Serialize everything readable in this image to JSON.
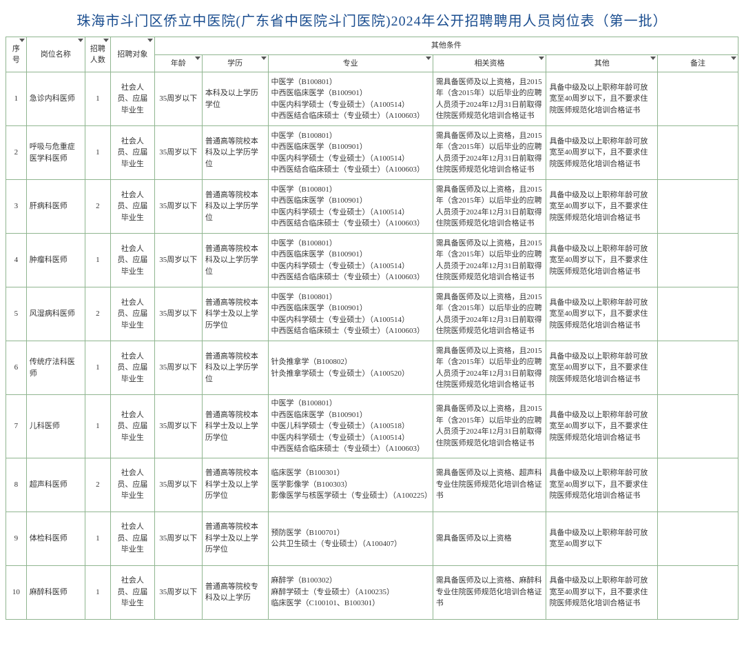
{
  "title": "珠海市斗门区侨立中医院(广东省中医院斗门医院)2024年公开招聘聘用人员岗位表（第一批）",
  "headers": {
    "idx": "序号",
    "pos": "岗位名称",
    "count": "招聘人数",
    "target": "招聘对象",
    "other_group": "其他条件",
    "age": "年龄",
    "edu": "学历",
    "major": "专业",
    "qual": "相关资格",
    "other": "其他",
    "remark": "备注"
  },
  "rows": [
    {
      "idx": "1",
      "pos": "急诊内科医师",
      "count": "1",
      "target": "社会人员、应届毕业生",
      "age": "35周岁以下",
      "edu": "本科及以上学历学位",
      "major": "中医学（B100801）\n中西医临床医学（B100901）\n中医内科学硕士（专业硕士）（A100514）\n中西医结合临床硕士（专业硕士）（A100603）",
      "qual": "需具备医师及以上资格，且2015年（含2015年）以后毕业的应聘人员须于2024年12月31日前取得住院医师规范化培训合格证书",
      "other": "具备中级及以上职称年龄可放宽至40周岁以下，且不要求住院医师规范化培训合格证书",
      "remark": ""
    },
    {
      "idx": "2",
      "pos": "呼吸与危重症医学科医师",
      "count": "1",
      "target": "社会人员、应届毕业生",
      "age": "35周岁以下",
      "edu": "普通高等院校本科及以上学历学位",
      "major": "中医学（B100801）\n中西医临床医学（B100901）\n中医内科学硕士（专业硕士）（A100514）\n中西医结合临床硕士（专业硕士）（A100603）",
      "qual": "需具备医师及以上资格，且2015年（含2015年）以后毕业的应聘人员须于2024年12月31日前取得住院医师规范化培训合格证书",
      "other": "具备中级及以上职称年龄可放宽至40周岁以下，且不要求住院医师规范化培训合格证书",
      "remark": ""
    },
    {
      "idx": "3",
      "pos": "肝病科医师",
      "count": "2",
      "target": "社会人员、应届毕业生",
      "age": "35周岁以下",
      "edu": "普通高等院校本科及以上学历学位",
      "major": "中医学（B100801）\n中西医临床医学（B100901）\n中医内科学硕士（专业硕士）（A100514）\n中西医结合临床硕士（专业硕士）（A100603）",
      "qual": "需具备医师及以上资格，且2015年（含2015年）以后毕业的应聘人员须于2024年12月31日前取得住院医师规范化培训合格证书",
      "other": "具备中级及以上职称年龄可放宽至40周岁以下，且不要求住院医师规范化培训合格证书",
      "remark": ""
    },
    {
      "idx": "4",
      "pos": "肿瘤科医师",
      "count": "1",
      "target": "社会人员、应届毕业生",
      "age": "35周岁以下",
      "edu": "普通高等院校本科及以上学历学位",
      "major": "中医学（B100801）\n中西医临床医学（B100901）\n中医内科学硕士（专业硕士）（A100514）\n中西医结合临床硕士（专业硕士）（A100603）",
      "qual": "需具备医师及以上资格，且2015年（含2015年）以后毕业的应聘人员须于2024年12月31日前取得住院医师规范化培训合格证书",
      "other": "具备中级及以上职称年龄可放宽至40周岁以下，且不要求住院医师规范化培训合格证书",
      "remark": ""
    },
    {
      "idx": "5",
      "pos": "风湿病科医师",
      "count": "2",
      "target": "社会人员、应届毕业生",
      "age": "35周岁以下",
      "edu": "普通高等院校本科学士及以上学历学位",
      "major": "中医学（B100801）\n中西医临床医学（B100901）\n中医内科学硕士（专业硕士）（A100514）\n中西医结合临床硕士（专业硕士）（A100603）",
      "qual": "需具备医师及以上资格，且2015年（含2015年）以后毕业的应聘人员须于2024年12月31日前取得住院医师规范化培训合格证书",
      "other": "具备中级及以上职称年龄可放宽至40周岁以下，且不要求住院医师规范化培训合格证书",
      "remark": ""
    },
    {
      "idx": "6",
      "pos": "传统疗法科医师",
      "count": "1",
      "target": "社会人员、应届毕业生",
      "age": "35周岁以下",
      "edu": "普通高等院校本科及以上学历学位",
      "major": "针灸推拿学（B100802）\n针灸推拿学硕士（专业硕士）（A100520）",
      "qual": "需具备医师及以上资格，且2015年（含2015年）以后毕业的应聘人员须于2024年12月31日前取得住院医师规范化培训合格证书",
      "other": "具备中级及以上职称年龄可放宽至40周岁以下，且不要求住院医师规范化培训合格证书",
      "remark": ""
    },
    {
      "idx": "7",
      "pos": "儿科医师",
      "count": "1",
      "target": "社会人员、应届毕业生",
      "age": "35周岁以下",
      "edu": "普通高等院校本科学士及以上学历学位",
      "major": "中医学（B100801）\n中西医临床医学（B100901）\n中医儿科学硕士（专业硕士）（A100518）\n中医内科学硕士（专业硕士）（A100514）\n中西医结合临床硕士（专业硕士）（A100603）",
      "qual": "需具备医师及以上资格，且2015年（含2015年）以后毕业的应聘人员须于2024年12月31日前取得住院医师规范化培训合格证书",
      "other": "具备中级及以上职称年龄可放宽至40周岁以下，且不要求住院医师规范化培训合格证书",
      "remark": ""
    },
    {
      "idx": "8",
      "pos": "超声科医师",
      "count": "2",
      "target": "社会人员、应届毕业生",
      "age": "35周岁以下",
      "edu": "普通高等院校本科学士及以上学历学位",
      "major": "临床医学（B100301）\n医学影像学（B100303）\n影像医学与核医学硕士（专业硕士）（A100225）",
      "qual": "需具备医师及以上资格、超声科专业住院医师规范化培训合格证书",
      "other": "具备中级及以上职称年龄可放宽至40周岁以下，且不要求住院医师规范化培训合格证书",
      "remark": ""
    },
    {
      "idx": "9",
      "pos": "体检科医师",
      "count": "1",
      "target": "社会人员、应届毕业生",
      "age": "35周岁以下",
      "edu": "普通高等院校本科学士及以上学历学位",
      "major": "预防医学（B100701）\n公共卫生硕士（专业硕士）（A100407）",
      "qual": "需具备医师及以上资格",
      "other": "具备中级及以上职称年龄可放宽至40周岁以下",
      "remark": ""
    },
    {
      "idx": "10",
      "pos": "麻醉科医师",
      "count": "1",
      "target": "社会人员、应届毕业生",
      "age": "35周岁以下",
      "edu": "普通高等院校专科及以上学历",
      "major": "麻醉学（B100302）\n麻醉学硕士（专业硕士）（A100235）\n临床医学（C100101、B100301）",
      "qual": "需具备医师及以上资格、麻醉科专业住院医师规范化培训合格证书",
      "other": "具备中级及以上职称年龄可放宽至40周岁以下，且不要求住院医师规范化培训合格证书",
      "remark": ""
    }
  ]
}
